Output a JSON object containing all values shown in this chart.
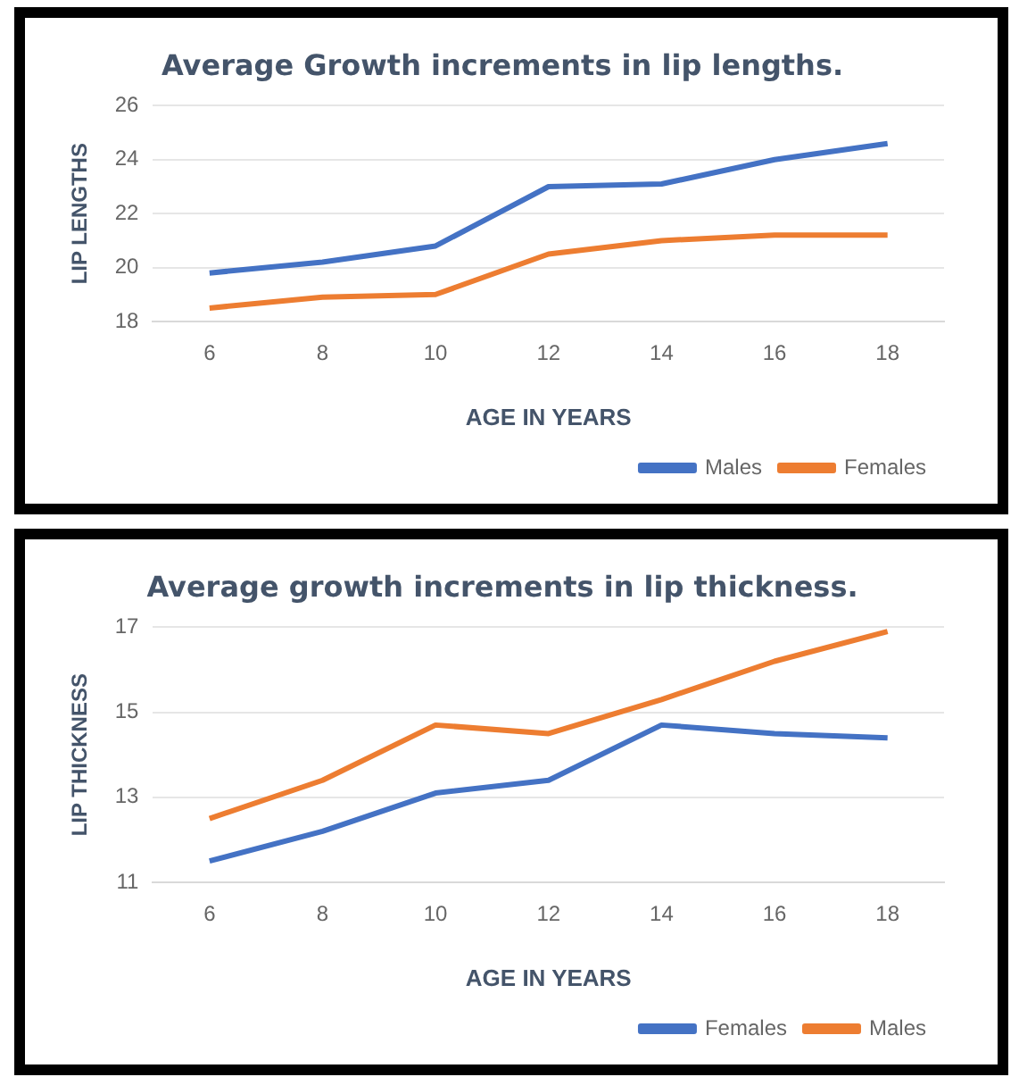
{
  "chart_data": [
    {
      "type": "line",
      "title": "Average Growth increments in lip lengths.",
      "xlabel": "AGE IN YEARS",
      "ylabel": "LIP LENGTHS",
      "categories": [
        "6",
        "8",
        "10",
        "12",
        "14",
        "16",
        "18"
      ],
      "series": [
        {
          "name": "Males",
          "color": "#4472c4",
          "values": [
            19.8,
            20.2,
            20.8,
            23.0,
            23.1,
            24.0,
            24.6
          ]
        },
        {
          "name": "Females",
          "color": "#ed7d31",
          "values": [
            18.5,
            18.9,
            19.0,
            20.5,
            21.0,
            21.2,
            21.2
          ]
        }
      ],
      "ylim": [
        18,
        26
      ],
      "yticks": [
        18,
        20,
        22,
        24,
        26
      ],
      "grid": "y",
      "legend": "bottom",
      "marker": "none"
    },
    {
      "type": "line",
      "title": "Average growth increments in lip thickness.",
      "xlabel": "AGE IN YEARS",
      "ylabel": "LIP THICKNESS",
      "categories": [
        "6",
        "8",
        "10",
        "12",
        "14",
        "16",
        "18"
      ],
      "series": [
        {
          "name": "Females",
          "color": "#4472c4",
          "values": [
            11.5,
            12.2,
            13.1,
            13.4,
            14.7,
            14.5,
            14.4
          ]
        },
        {
          "name": "Males",
          "color": "#ed7d31",
          "values": [
            12.5,
            13.4,
            14.7,
            14.5,
            15.3,
            16.2,
            16.9
          ]
        }
      ],
      "ylim": [
        11,
        17
      ],
      "yticks": [
        11,
        13,
        15,
        17
      ],
      "grid": "y",
      "legend": "bottom",
      "marker": "none"
    }
  ]
}
